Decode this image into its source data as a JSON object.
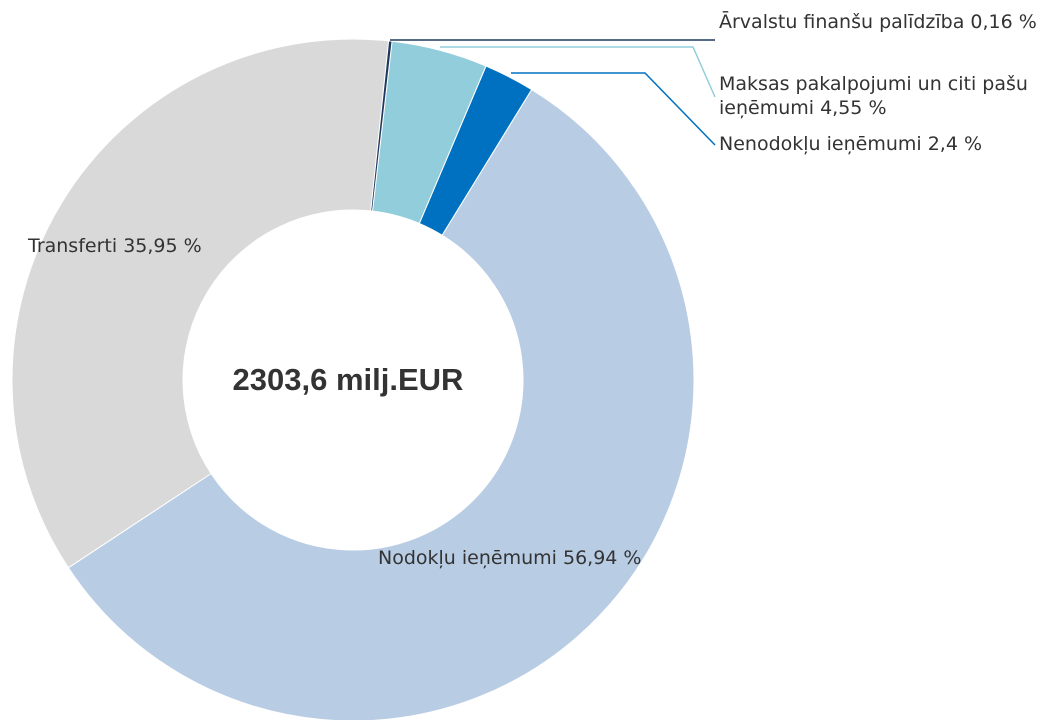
{
  "chart_data": {
    "type": "donut",
    "annotation": "2303,6 milj.EUR",
    "categories": [
      "Ārvalstu finanšu palīdzība",
      "Maksas pakalpojumi un citi pašu ieņēmumi",
      "Nenodokļu ieņēmumi",
      "Nodokļu ieņēmumi",
      "Transferti"
    ],
    "values": [
      0.16,
      4.55,
      2.4,
      56.94,
      35.95
    ],
    "value_labels": [
      "0,16 %",
      "4,55 %",
      "2,4 %",
      "56,94 %",
      "35,95 %"
    ],
    "colors": [
      "#1f3a5f",
      "#92cddc",
      "#0070c0",
      "#b8cce4",
      "#d9d9d9"
    ]
  }
}
